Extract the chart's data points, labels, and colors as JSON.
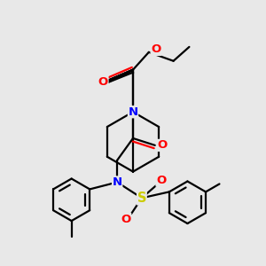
{
  "bg_color": "#e8e8e8",
  "atom_colors": {
    "N": "#0000ff",
    "O": "#ff0000",
    "S": "#cccc00"
  },
  "line_color": "#000000",
  "line_width": 1.6,
  "font_size": 9.5,
  "fig_size": [
    3.0,
    3.0
  ],
  "dpi": 100
}
